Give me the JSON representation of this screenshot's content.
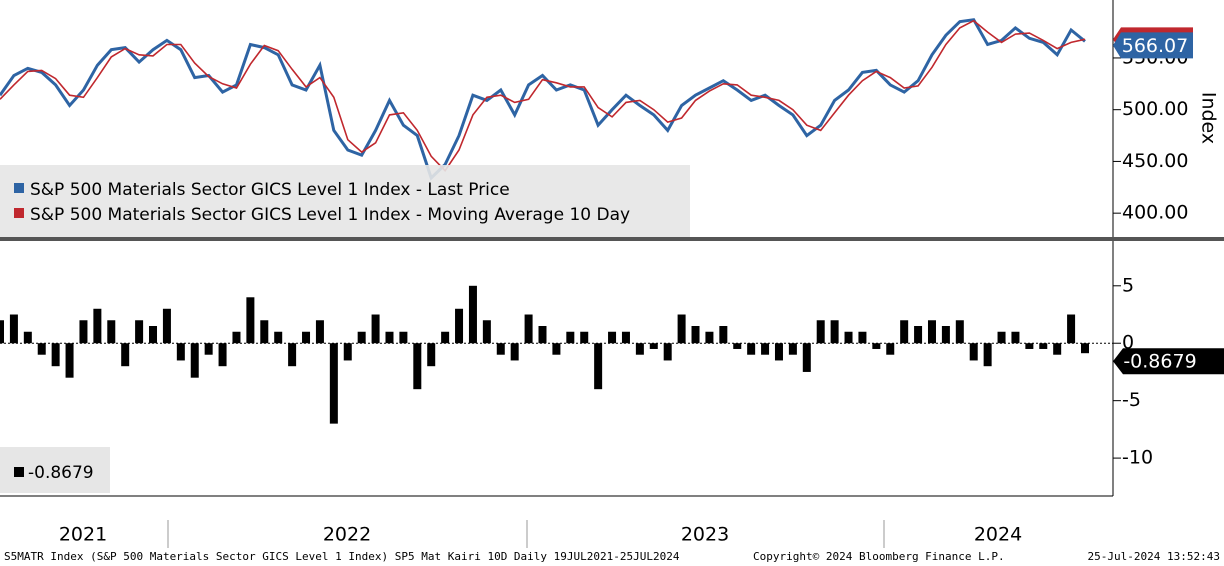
{
  "chart_data": [
    {
      "type": "line",
      "y_label": "Index",
      "series": [
        {
          "name": "S&P 500 Materials Sector GICS Level 1 Index - Last Price",
          "color": "#2e64a4",
          "values": [
            514,
            533,
            540,
            536,
            524,
            504,
            519,
            543,
            558,
            560,
            546,
            558,
            567,
            558,
            531,
            533,
            517,
            524,
            563,
            560,
            553,
            524,
            519,
            543,
            480,
            461,
            456,
            480,
            509,
            485,
            475,
            434,
            447,
            475,
            514,
            509,
            519,
            495,
            524,
            533,
            519,
            524,
            519,
            485,
            500,
            514,
            504,
            495,
            480,
            504,
            514,
            521,
            528,
            519,
            509,
            514,
            504,
            495,
            475,
            485,
            509,
            519,
            536,
            538,
            524,
            517,
            528,
            553,
            572,
            585,
            587,
            563,
            567,
            579,
            569,
            565,
            553,
            577,
            566.07
          ]
        },
        {
          "name": "S&P 500 Materials Sector GICS Level 1 Index - Moving Average 10 Day",
          "color": "#c0282e",
          "values": [
            510,
            524,
            537,
            538,
            530,
            514,
            512,
            531,
            551,
            559,
            553,
            552,
            563,
            563,
            545,
            532,
            525,
            521,
            544,
            562,
            557,
            539,
            522,
            531,
            512,
            471,
            459,
            468,
            495,
            497,
            480,
            455,
            441,
            461,
            495,
            512,
            514,
            507,
            510,
            529,
            526,
            522,
            522,
            502,
            493,
            507,
            509,
            500,
            488,
            492,
            509,
            518,
            525,
            524,
            514,
            512,
            509,
            500,
            485,
            480,
            497,
            514,
            528,
            537,
            531,
            521,
            523,
            541,
            563,
            579,
            586,
            575,
            565,
            573,
            574,
            567,
            559,
            565,
            568
          ]
        }
      ],
      "ylim": [
        376,
        606
      ],
      "yticks": [
        {
          "value": 400,
          "label": "400.00"
        },
        {
          "value": 450,
          "label": "450.00"
        },
        {
          "value": 500,
          "label": "500.00"
        },
        {
          "value": 550,
          "label": "550.00"
        }
      ]
    },
    {
      "type": "bar",
      "series": [
        {
          "name": "-0.8679",
          "color": "#000000",
          "values": [
            2,
            2.5,
            1,
            -1,
            -2,
            -3,
            2,
            3,
            2,
            -2,
            2,
            1.5,
            3,
            -1.5,
            -3,
            -1,
            -2,
            1,
            4,
            2,
            1,
            -2,
            1,
            2,
            -7,
            -1.5,
            1,
            2.5,
            1,
            1,
            -4,
            -2,
            1,
            3,
            5,
            2,
            -1,
            -1.5,
            2.5,
            1.5,
            -1,
            1,
            1,
            -4,
            1,
            1,
            -1,
            -0.5,
            -1.5,
            2.5,
            1.5,
            1,
            1.5,
            -0.5,
            -1,
            -1,
            -1.5,
            -1,
            -2.5,
            2,
            2,
            1,
            1,
            -0.5,
            -1,
            2,
            1.5,
            2,
            1.5,
            2,
            -1.5,
            -2,
            1,
            1,
            -0.5,
            -0.5,
            -1,
            2.5,
            -0.8679
          ]
        }
      ],
      "ylim": [
        -13.3,
        8.9
      ],
      "yticks": [
        5,
        0,
        -5,
        -10
      ]
    }
  ],
  "year_labels": [
    "2021",
    "2022",
    "2023",
    "2024"
  ],
  "footer_left": "S5MATR Index (S&P 500 Materials Sector GICS Level 1 Index) SP5 Mat Kairi 10D  Daily 19JUL2021-25JUL2024",
  "footer_center": "Copyright© 2024 Bloomberg Finance L.P.",
  "footer_right": "25-Jul-2024 13:52:43"
}
